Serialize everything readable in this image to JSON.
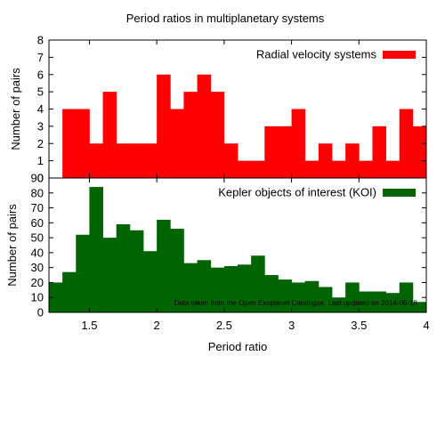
{
  "figure": {
    "title": "Period ratios in multiplanetary systems",
    "xlabel": "Period ratio",
    "note": "Data taken from the Open Exoplanet Catalogue. Last updated on 2014-06-18"
  },
  "chart_data": [
    {
      "type": "bar",
      "title": "Period ratios in multiplanetary systems",
      "series": [
        {
          "name": "Radial velocity systems",
          "color": "#ff0000"
        }
      ],
      "bin_width": 0.1,
      "x": [
        1.25,
        1.35,
        1.45,
        1.55,
        1.65,
        1.75,
        1.85,
        1.95,
        2.05,
        2.15,
        2.25,
        2.35,
        2.45,
        2.55,
        2.65,
        2.75,
        2.85,
        2.95,
        3.05,
        3.15,
        3.25,
        3.35,
        3.45,
        3.55,
        3.65,
        3.75,
        3.85,
        3.95
      ],
      "values": [
        0,
        4,
        4,
        2,
        5,
        2,
        2,
        2,
        6,
        4,
        5,
        6,
        5,
        2,
        1,
        1,
        3,
        3,
        4,
        1,
        2,
        1,
        2,
        1,
        3,
        1,
        4,
        3
      ],
      "ylabel": "Number of pairs",
      "xlim": [
        1.2,
        4.0
      ],
      "ylim": [
        0,
        8
      ],
      "yticks": [
        "0",
        "1",
        "2",
        "3",
        "4",
        "5",
        "6",
        "7",
        "8"
      ],
      "xticks": [],
      "legend": "top-right"
    },
    {
      "type": "bar",
      "series": [
        {
          "name": "Kepler objects of interest (KOI)",
          "color": "#006400"
        }
      ],
      "bin_width": 0.1,
      "x": [
        1.25,
        1.35,
        1.45,
        1.55,
        1.65,
        1.75,
        1.85,
        1.95,
        2.05,
        2.15,
        2.25,
        2.35,
        2.45,
        2.55,
        2.65,
        2.75,
        2.85,
        2.95,
        3.05,
        3.15,
        3.25,
        3.35,
        3.45,
        3.55,
        3.65,
        3.75,
        3.85,
        3.95
      ],
      "values": [
        20,
        27,
        52,
        84,
        50,
        59,
        55,
        41,
        62,
        56,
        33,
        35,
        30,
        31,
        32,
        38,
        25,
        22,
        20,
        21,
        17,
        10,
        20,
        14,
        14,
        13,
        20,
        7
      ],
      "ylabel": "Number of pairs",
      "xlabel": "Period ratio",
      "xlim": [
        1.2,
        4.0
      ],
      "ylim": [
        0,
        90
      ],
      "yticks": [
        "0",
        "10",
        "20",
        "30",
        "40",
        "50",
        "60",
        "70",
        "80",
        "90"
      ],
      "xticks": [
        "1.5",
        "2",
        "2.5",
        "3",
        "3.5",
        "4"
      ],
      "legend": "top-right"
    }
  ]
}
